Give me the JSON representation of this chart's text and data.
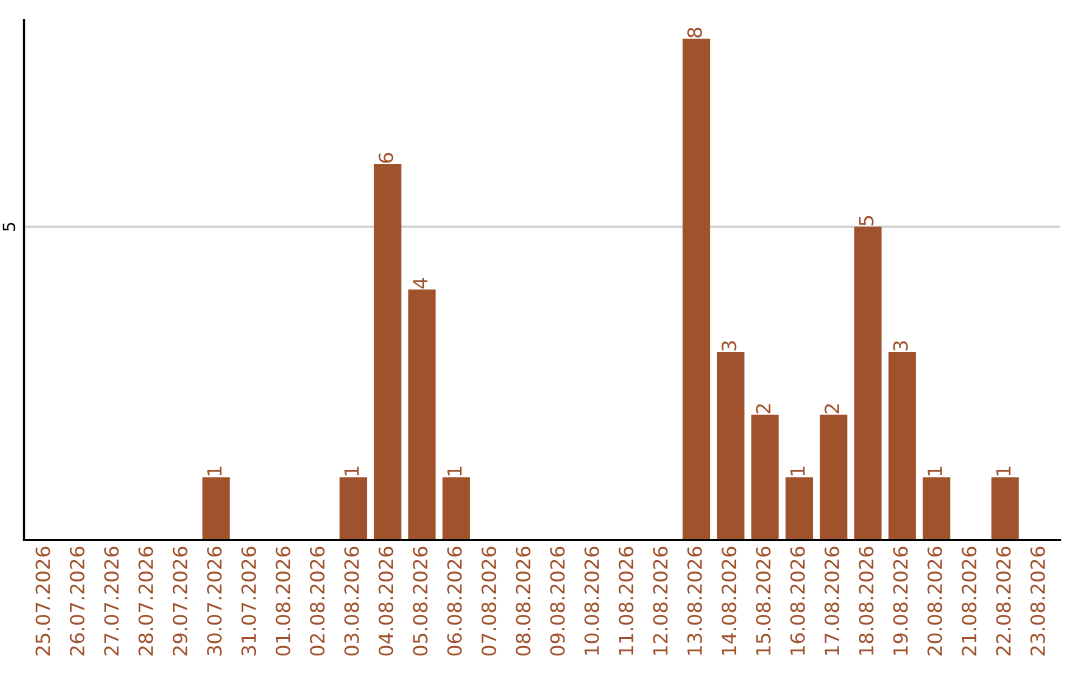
{
  "chart_data": {
    "type": "bar",
    "categories": [
      "25.07.2026",
      "26.07.2026",
      "27.07.2026",
      "28.07.2026",
      "29.07.2026",
      "30.07.2026",
      "31.07.2026",
      "01.08.2026",
      "02.08.2026",
      "03.08.2026",
      "04.08.2026",
      "05.08.2026",
      "06.08.2026",
      "07.08.2026",
      "08.08.2026",
      "09.08.2026",
      "10.08.2026",
      "11.08.2026",
      "12.08.2026",
      "13.08.2026",
      "14.08.2026",
      "15.08.2026",
      "16.08.2026",
      "17.08.2026",
      "18.08.2026",
      "19.08.2026",
      "20.08.2026",
      "21.08.2026",
      "22.08.2026",
      "23.08.2026"
    ],
    "values": [
      0,
      0,
      0,
      0,
      0,
      1,
      0,
      0,
      0,
      1,
      6,
      4,
      1,
      0,
      0,
      0,
      0,
      0,
      0,
      8,
      3,
      2,
      1,
      2,
      5,
      3,
      1,
      0,
      1,
      0
    ],
    "value_labels": [
      null,
      null,
      null,
      null,
      null,
      "1",
      null,
      null,
      null,
      "1",
      "6",
      "4",
      "1",
      null,
      null,
      null,
      null,
      null,
      null,
      "8",
      "3",
      "2",
      "1",
      "2",
      "5",
      "3",
      "1",
      null,
      "1",
      null
    ],
    "color": "#a0522d",
    "ylim": [
      0,
      8.3
    ],
    "yticks": [
      5
    ],
    "grid": "y",
    "legend": false
  }
}
